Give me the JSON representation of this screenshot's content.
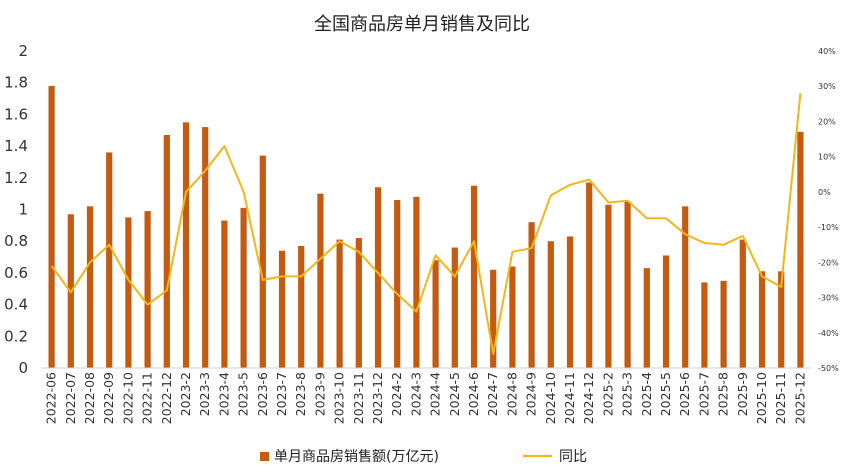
{
  "chart_data": {
    "type": "bar+line",
    "title": "全国商品房单月销售及同比",
    "categories": [
      "2022-06",
      "2022-07",
      "2022-08",
      "2022-09",
      "2022-10",
      "2022-11",
      "2022-12",
      "2023-2",
      "2023-3",
      "2023-4",
      "2023-5",
      "2023-6",
      "2023-7",
      "2023-8",
      "2023-9",
      "2023-10",
      "2023-11",
      "2023-12",
      "2024-2",
      "2024-3",
      "2024-4",
      "2024-5",
      "2024-6",
      "2024-7",
      "2024-8",
      "2024-9",
      "2024-10",
      "2024-11",
      "2024-12",
      "2025-2",
      "2025-3",
      "2025-4",
      "2025-5",
      "2025-6",
      "2025-7",
      "2025-8",
      "2025-9",
      "2025-10",
      "2025-11",
      "2025-12"
    ],
    "series": [
      {
        "name": "单月商品房销售额(万亿元)",
        "type": "bar",
        "axis": "left",
        "color": "#C55A11",
        "values": [
          1.78,
          0.97,
          1.02,
          1.36,
          0.95,
          0.99,
          1.47,
          1.55,
          1.52,
          0.93,
          1.01,
          1.34,
          0.74,
          0.77,
          1.1,
          0.81,
          0.82,
          1.14,
          1.06,
          1.08,
          0.68,
          0.76,
          1.15,
          0.62,
          0.64,
          0.92,
          0.8,
          0.83,
          1.17,
          1.03,
          1.05,
          0.63,
          0.71,
          1.02,
          0.54,
          0.55,
          0.81,
          0.61,
          0.61,
          1.49
        ]
      },
      {
        "name": "同比",
        "type": "line",
        "axis": "right",
        "color": "#F2B619",
        "values": [
          -21,
          -28.5,
          -20,
          -15,
          -25,
          -32,
          -28,
          0,
          6,
          13,
          0,
          -25,
          -24,
          -24,
          -19,
          -14,
          -17,
          -23,
          -29,
          -34,
          -18,
          -24,
          -14,
          -46,
          -17,
          -16,
          -1,
          2,
          3.5,
          -3,
          -2.5,
          -7.5,
          -7.5,
          -12,
          -14.5,
          -15,
          -12.5,
          -24,
          -27,
          28
        ]
      }
    ],
    "y_left": {
      "min": 0,
      "max": 2,
      "step": 0.2,
      "ticks": [
        "0",
        "0.2",
        "0.4",
        "0.6",
        "0.8",
        "1",
        "1.2",
        "1.4",
        "1.6",
        "1.8",
        "2"
      ]
    },
    "y_right": {
      "min": -50,
      "max": 40,
      "step": 10,
      "ticks": [
        "-50%",
        "-40%",
        "-30%",
        "-20%",
        "-10%",
        "0%",
        "10%",
        "20%",
        "30%",
        "40%"
      ]
    },
    "legend": {
      "position": "bottom",
      "items": [
        "单月商品房销售额(万亿元)",
        "同比"
      ]
    }
  }
}
